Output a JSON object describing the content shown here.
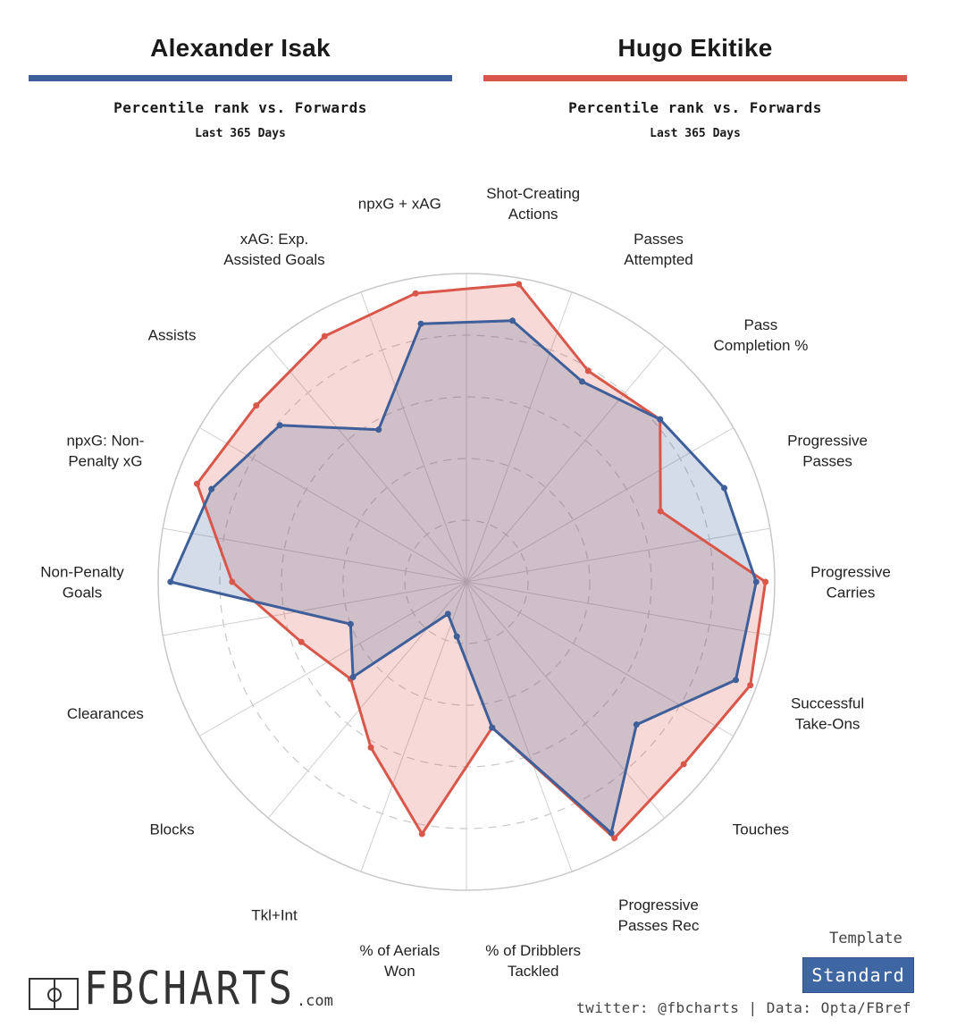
{
  "header": {
    "left": {
      "name": "Alexander Isak",
      "subtitle": "Percentile rank vs. Forwards",
      "period": "Last 365 Days"
    },
    "right": {
      "name": "Hugo Ekitike",
      "subtitle": "Percentile rank vs. Forwards",
      "period": "Last 365 Days"
    }
  },
  "chart_data": {
    "type": "radar",
    "axes": [
      "Shot-Creating\nActions",
      "Passes\nAttempted",
      "Pass\nCompletion %",
      "Progressive\nPasses",
      "Progressive\nCarries",
      "Successful\nTake-Ons",
      "Touches",
      "Progressive\nPasses Rec",
      "% of Dribblers\nTackled",
      "% of Aerials\nWon",
      "Tkl+Int",
      "Blocks",
      "Clearances",
      "Non-Penalty\nGoals",
      "npxG: Non-\nPenalty xG",
      "Assists",
      "xAG: Exp.\nAssisted Goals",
      "npxG + xAG"
    ],
    "rlim": [
      0,
      100
    ],
    "series": [
      {
        "name": "Alexander Isak",
        "color": "#3e5f9a",
        "values": [
          86,
          75,
          82,
          89,
          94,
          93,
          72,
          94,
          48,
          18,
          12,
          48,
          40,
          96,
          88,
          79,
          57,
          85
        ]
      },
      {
        "name": "Hugo Ekitike",
        "color": "#d9574a",
        "values": [
          98,
          79,
          82,
          67,
          97,
          98,
          92,
          96,
          48,
          83,
          62,
          49,
          57,
          76,
          93,
          89,
          92,
          95
        ]
      }
    ],
    "grid": true
  },
  "footer": {
    "brand": "FBCHARTS",
    "brand_suffix": ".com",
    "template_label": "Template",
    "template_value": "Standard",
    "credits": "twitter: @fbcharts | Data: Opta/FBref"
  },
  "colors": {
    "isak": "#3e5f9a",
    "ekitike": "#d9574a",
    "button": "#3e66a3"
  }
}
